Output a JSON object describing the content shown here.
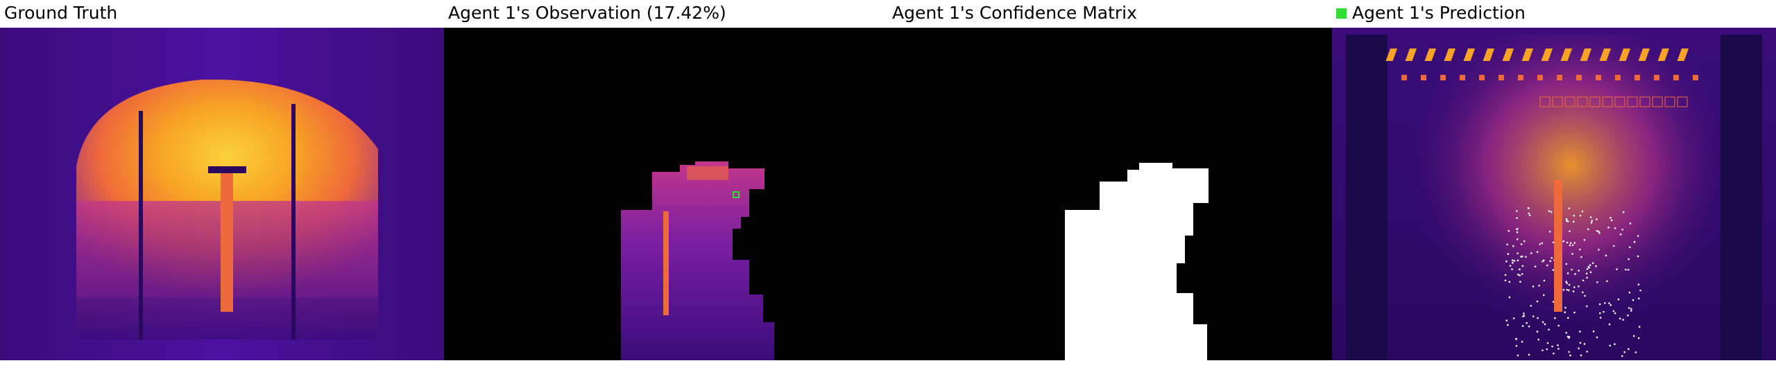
{
  "panels": [
    {
      "title": "Ground Truth"
    },
    {
      "title": "Agent 1's Observation (17.42%)"
    },
    {
      "title": "Agent 1's Confidence Matrix"
    },
    {
      "title": "Agent 1's Prediction",
      "legend_color": "#33dd33"
    }
  ],
  "colors": {
    "background": "#ffffff",
    "masked": "#000000",
    "confidence": "#ffffff",
    "marker": "#33dd33",
    "dots": "#ffffff",
    "colormap": [
      "#1a0a4a",
      "#3a0c7a",
      "#7b1fa2",
      "#c2368a",
      "#ef6a3a",
      "#f7a325",
      "#fbd23a"
    ]
  }
}
